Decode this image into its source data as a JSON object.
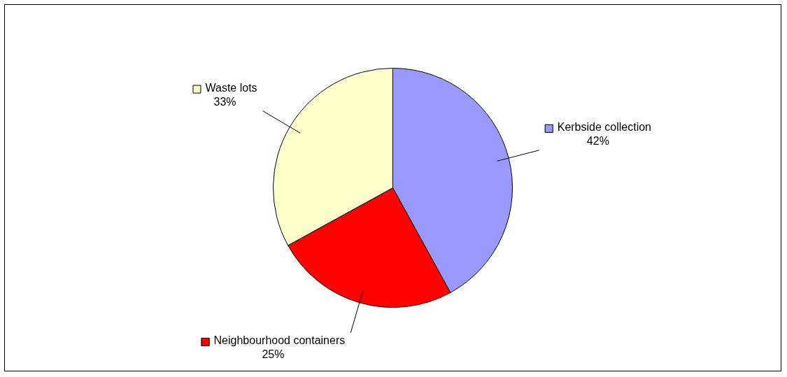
{
  "chart_data": {
    "type": "pie",
    "categories": [
      "Kerbside collection",
      "Neighbourhood containers",
      "Waste lots"
    ],
    "values": [
      42,
      25,
      33
    ],
    "colors": [
      "#9999ff",
      "#ff0000",
      "#ffffcc"
    ],
    "value_labels": [
      "42%",
      "25%",
      "33%"
    ],
    "legend": "right"
  }
}
